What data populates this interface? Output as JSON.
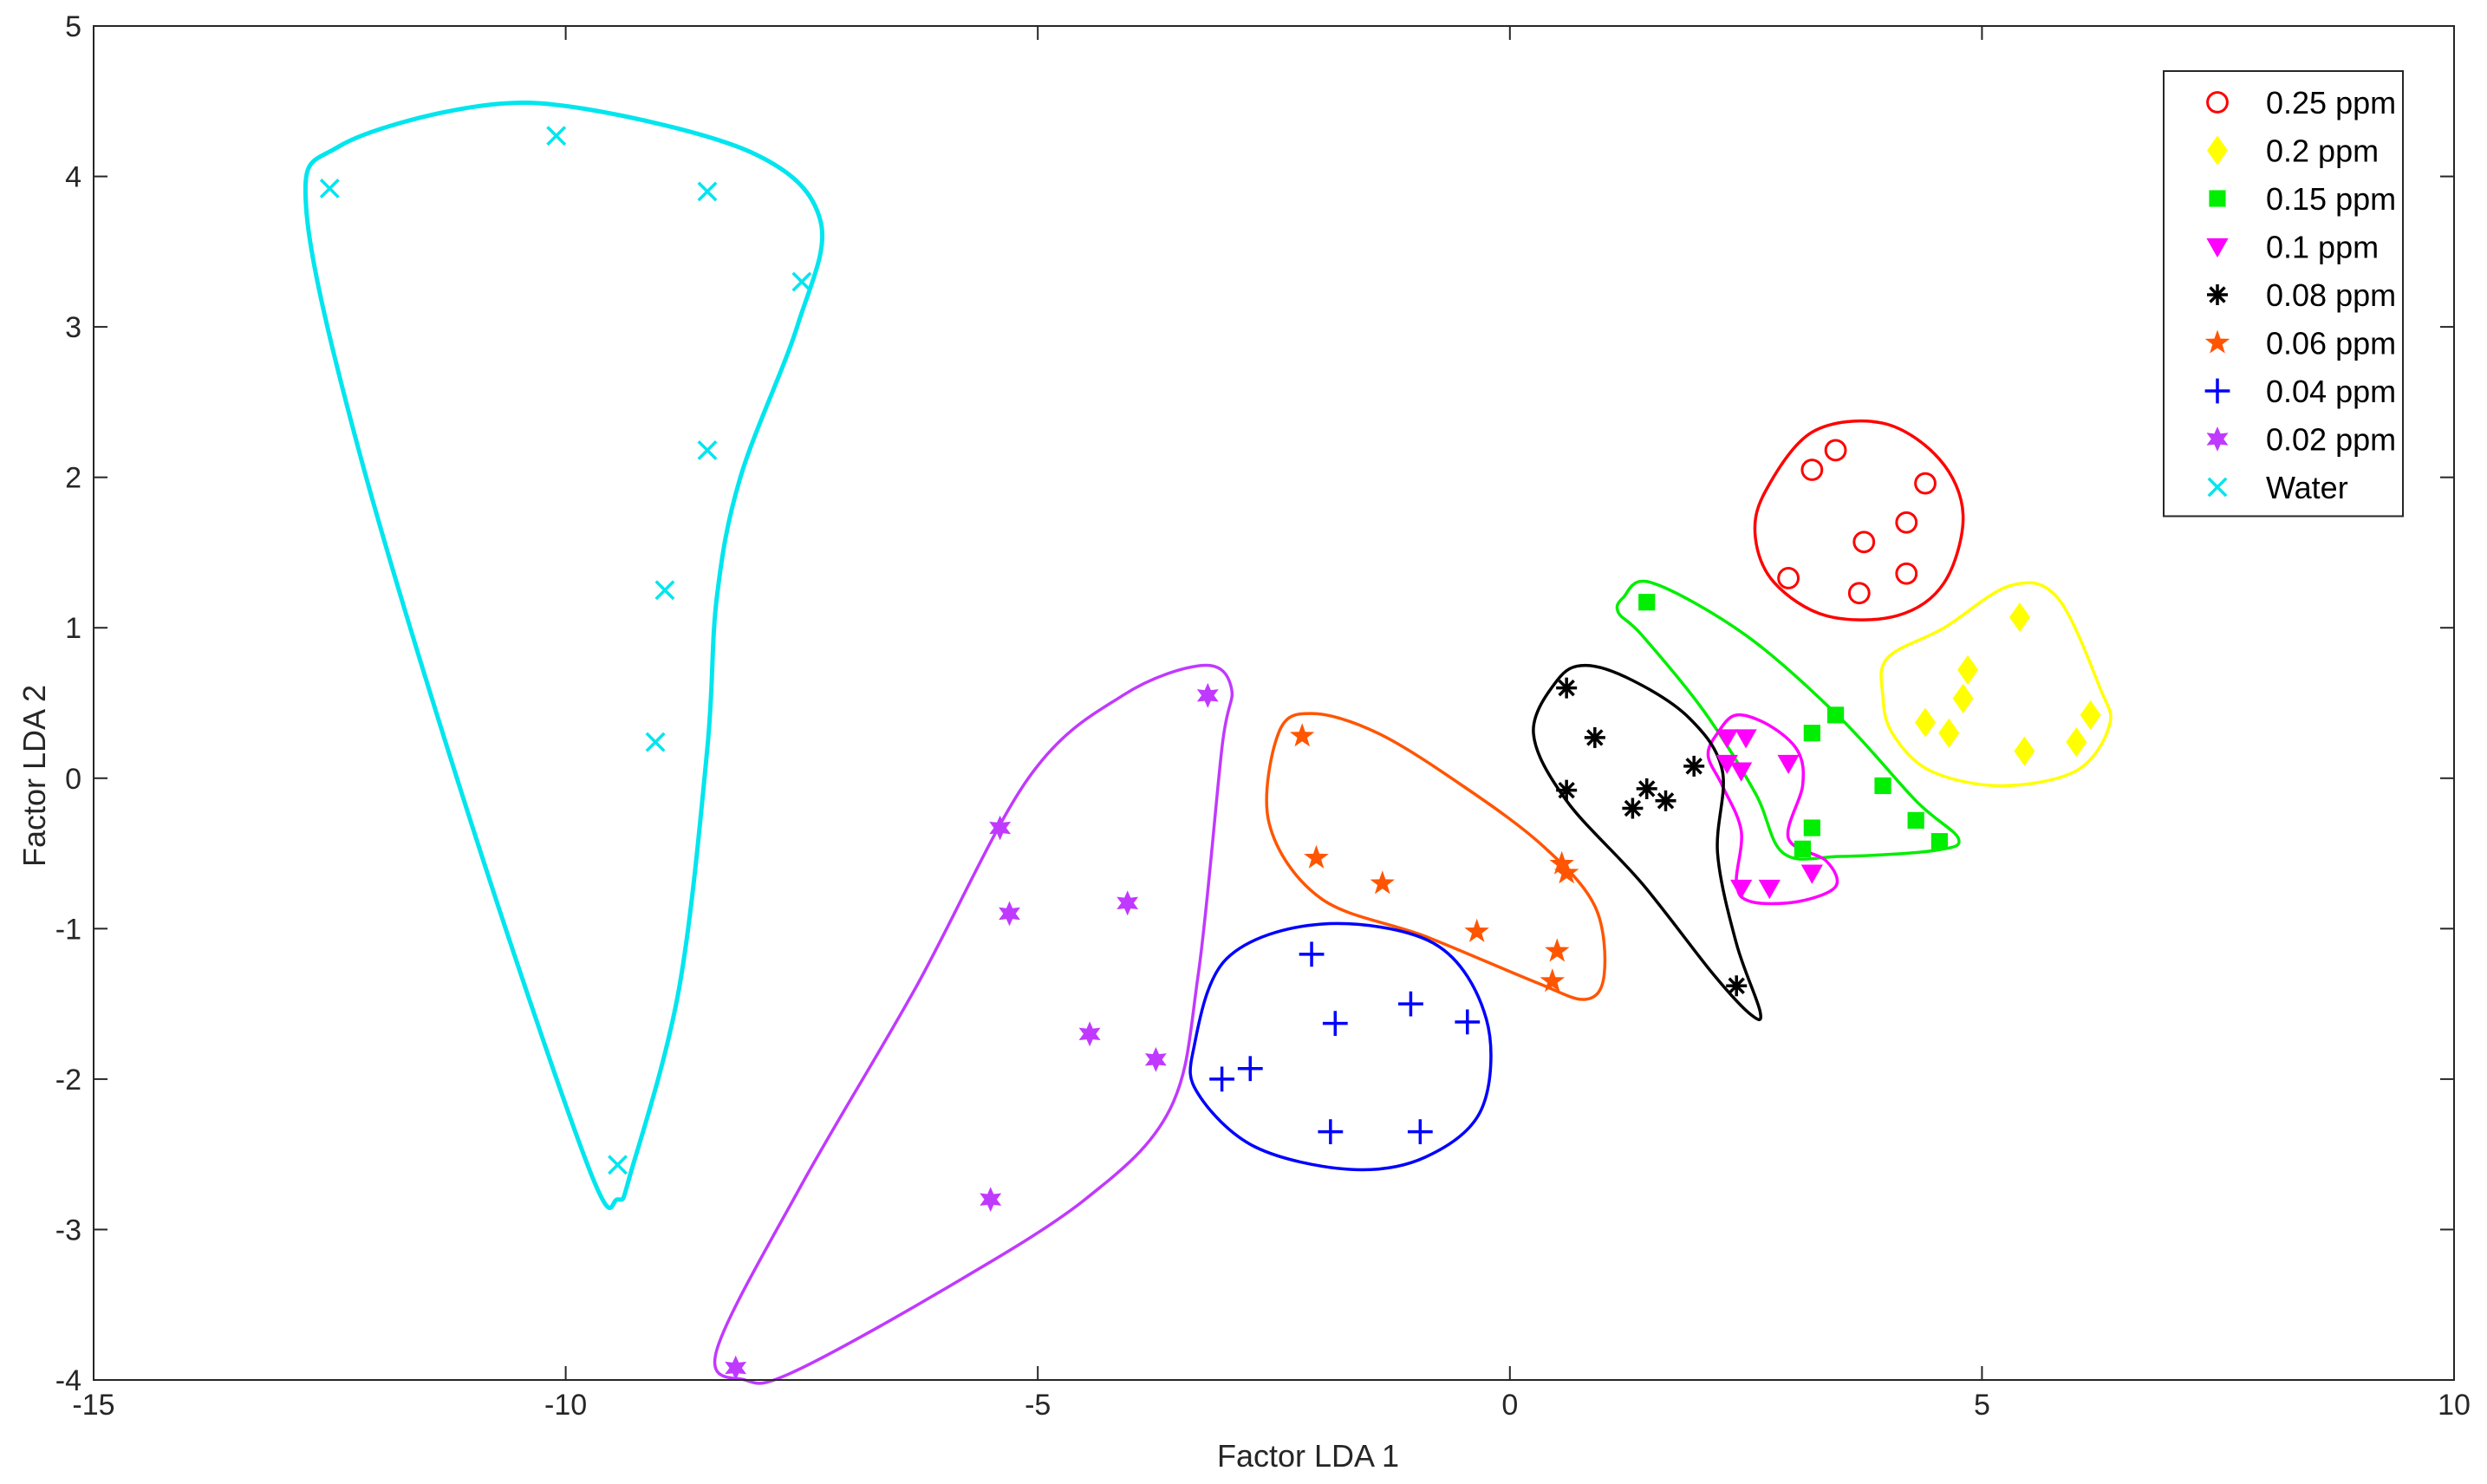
{
  "chart_data": {
    "type": "scatter",
    "xlabel": "Factor LDA 1",
    "ylabel": "Factor LDA 2",
    "xlim": [
      -15,
      10
    ],
    "ylim": [
      -4,
      5
    ],
    "xticks": [
      -15,
      -10,
      -5,
      0,
      5,
      10
    ],
    "yticks": [
      -4,
      -3,
      -2,
      -1,
      0,
      1,
      2,
      3,
      4,
      5
    ],
    "grid": false,
    "legend_position": "top-right",
    "series": [
      {
        "name": "0.25 ppm",
        "marker": "circle-open",
        "color": "#ff0000",
        "points": [
          [
            3.2,
            2.05
          ],
          [
            3.45,
            2.18
          ],
          [
            4.4,
            1.96
          ],
          [
            4.2,
            1.7
          ],
          [
            3.75,
            1.57
          ],
          [
            2.95,
            1.33
          ],
          [
            3.7,
            1.23
          ],
          [
            4.2,
            1.36
          ]
        ],
        "outline": [
          [
            2.7,
            1.9
          ],
          [
            3.2,
            2.3
          ],
          [
            3.95,
            2.36
          ],
          [
            4.55,
            2.12
          ],
          [
            4.8,
            1.75
          ],
          [
            4.6,
            1.3
          ],
          [
            4.1,
            1.08
          ],
          [
            3.35,
            1.08
          ],
          [
            2.8,
            1.3
          ],
          [
            2.6,
            1.6
          ]
        ]
      },
      {
        "name": "0.2 ppm",
        "marker": "diamond",
        "color": "#ffff00",
        "points": [
          [
            5.4,
            1.07
          ],
          [
            4.85,
            0.72
          ],
          [
            4.8,
            0.53
          ],
          [
            4.4,
            0.37
          ],
          [
            4.65,
            0.3
          ],
          [
            6.15,
            0.42
          ],
          [
            5.45,
            0.18
          ],
          [
            6.0,
            0.24
          ]
        ],
        "outline": [
          [
            4.0,
            0.8
          ],
          [
            4.6,
            1.0
          ],
          [
            5.3,
            1.28
          ],
          [
            5.8,
            1.2
          ],
          [
            6.25,
            0.6
          ],
          [
            6.35,
            0.35
          ],
          [
            6.0,
            0.05
          ],
          [
            5.2,
            -0.05
          ],
          [
            4.45,
            0.05
          ],
          [
            4.05,
            0.3
          ],
          [
            3.95,
            0.55
          ]
        ]
      },
      {
        "name": "0.15 ppm",
        "marker": "square",
        "color": "#00ee00",
        "points": [
          [
            1.45,
            1.17
          ],
          [
            3.45,
            0.42
          ],
          [
            3.2,
            0.3
          ],
          [
            3.95,
            -0.05
          ],
          [
            3.2,
            -0.33
          ],
          [
            3.1,
            -0.47
          ],
          [
            4.3,
            -0.28
          ],
          [
            4.55,
            -0.42
          ]
        ],
        "outline": [
          [
            1.2,
            1.2
          ],
          [
            1.5,
            1.3
          ],
          [
            2.5,
            0.95
          ],
          [
            3.5,
            0.4
          ],
          [
            4.3,
            -0.15
          ],
          [
            4.75,
            -0.4
          ],
          [
            4.5,
            -0.48
          ],
          [
            3.5,
            -0.52
          ],
          [
            2.9,
            -0.5
          ],
          [
            2.6,
            -0.1
          ],
          [
            2.05,
            0.45
          ],
          [
            1.4,
            0.95
          ],
          [
            1.15,
            1.1
          ]
        ]
      },
      {
        "name": "0.1 ppm",
        "marker": "triangle-down",
        "color": "#ff00ff",
        "points": [
          [
            2.3,
            0.27
          ],
          [
            2.5,
            0.27
          ],
          [
            2.3,
            0.1
          ],
          [
            2.45,
            0.05
          ],
          [
            2.95,
            0.1
          ],
          [
            2.45,
            -0.73
          ],
          [
            2.75,
            -0.73
          ],
          [
            3.2,
            -0.63
          ]
        ],
        "outline": [
          [
            2.2,
            0.3
          ],
          [
            2.4,
            0.42
          ],
          [
            2.75,
            0.35
          ],
          [
            3.05,
            0.18
          ],
          [
            3.1,
            -0.05
          ],
          [
            2.95,
            -0.4
          ],
          [
            3.35,
            -0.55
          ],
          [
            3.45,
            -0.72
          ],
          [
            3.05,
            -0.82
          ],
          [
            2.55,
            -0.82
          ],
          [
            2.4,
            -0.7
          ],
          [
            2.45,
            -0.35
          ],
          [
            2.25,
            -0.05
          ],
          [
            2.1,
            0.15
          ]
        ]
      },
      {
        "name": "0.08 ppm",
        "marker": "asterisk",
        "color": "#000000",
        "points": [
          [
            0.6,
            0.6
          ],
          [
            0.9,
            0.27
          ],
          [
            0.6,
            -0.08
          ],
          [
            1.45,
            -0.07
          ],
          [
            1.65,
            -0.15
          ],
          [
            1.95,
            0.08
          ],
          [
            1.3,
            -0.2
          ],
          [
            2.4,
            -1.38
          ]
        ],
        "outline": [
          [
            0.8,
            0.75
          ],
          [
            1.3,
            0.65
          ],
          [
            1.9,
            0.4
          ],
          [
            2.25,
            0.05
          ],
          [
            2.2,
            -0.5
          ],
          [
            2.4,
            -1.1
          ],
          [
            2.65,
            -1.55
          ],
          [
            2.55,
            -1.57
          ],
          [
            2.15,
            -1.3
          ],
          [
            1.4,
            -0.7
          ],
          [
            0.6,
            -0.15
          ],
          [
            0.25,
            0.3
          ],
          [
            0.5,
            0.65
          ]
        ]
      },
      {
        "name": "0.06 ppm",
        "marker": "star",
        "color": "#ff5500",
        "points": [
          [
            -2.2,
            0.28
          ],
          [
            -2.05,
            -0.53
          ],
          [
            -1.35,
            -0.7
          ],
          [
            -0.35,
            -1.02
          ],
          [
            0.55,
            -0.57
          ],
          [
            0.6,
            -0.63
          ],
          [
            0.5,
            -1.15
          ],
          [
            0.45,
            -1.35
          ]
        ],
        "outline": [
          [
            -2.45,
            0.3
          ],
          [
            -2.1,
            0.43
          ],
          [
            -1.4,
            0.3
          ],
          [
            -0.5,
            -0.05
          ],
          [
            0.35,
            -0.45
          ],
          [
            0.9,
            -0.85
          ],
          [
            1.0,
            -1.3
          ],
          [
            0.8,
            -1.47
          ],
          [
            0.25,
            -1.35
          ],
          [
            -0.9,
            -1.05
          ],
          [
            -2.0,
            -0.8
          ],
          [
            -2.55,
            -0.3
          ]
        ]
      },
      {
        "name": "0.04 ppm",
        "marker": "plus",
        "color": "#0000ff",
        "points": [
          [
            -2.1,
            -1.17
          ],
          [
            -1.85,
            -1.63
          ],
          [
            -1.05,
            -1.5
          ],
          [
            -0.45,
            -1.62
          ],
          [
            -2.75,
            -1.93
          ],
          [
            -3.05,
            -2.0
          ],
          [
            -1.9,
            -2.35
          ],
          [
            -0.95,
            -2.35
          ]
        ],
        "outline": [
          [
            -3.35,
            -1.8
          ],
          [
            -3.0,
            -1.2
          ],
          [
            -2.0,
            -0.97
          ],
          [
            -0.8,
            -1.1
          ],
          [
            -0.25,
            -1.6
          ],
          [
            -0.3,
            -2.2
          ],
          [
            -0.9,
            -2.52
          ],
          [
            -1.7,
            -2.6
          ],
          [
            -2.7,
            -2.45
          ],
          [
            -3.3,
            -2.1
          ]
        ]
      },
      {
        "name": "0.02 ppm",
        "marker": "hexagram",
        "color": "#c039ff",
        "points": [
          [
            -3.2,
            0.55
          ],
          [
            -5.4,
            -0.33
          ],
          [
            -5.3,
            -0.9
          ],
          [
            -4.05,
            -0.83
          ],
          [
            -4.45,
            -1.7
          ],
          [
            -3.75,
            -1.87
          ],
          [
            -5.5,
            -2.8
          ],
          [
            -8.2,
            -3.92
          ]
        ],
        "outline": [
          [
            -8.4,
            -3.8
          ],
          [
            -7.5,
            -2.7
          ],
          [
            -6.3,
            -1.4
          ],
          [
            -5.1,
            0.0
          ],
          [
            -4.1,
            0.55
          ],
          [
            -3.25,
            0.75
          ],
          [
            -2.95,
            0.6
          ],
          [
            -3.05,
            0.2
          ],
          [
            -3.3,
            -1.3
          ],
          [
            -3.6,
            -2.2
          ],
          [
            -4.5,
            -2.8
          ],
          [
            -6.0,
            -3.4
          ],
          [
            -7.6,
            -3.95
          ],
          [
            -8.1,
            -4.0
          ]
        ]
      },
      {
        "name": "Water",
        "marker": "x",
        "color": "#00e5ee",
        "points": [
          [
            -10.1,
            4.27
          ],
          [
            -8.5,
            3.9
          ],
          [
            -12.5,
            3.92
          ],
          [
            -7.5,
            3.3
          ],
          [
            -8.5,
            2.18
          ],
          [
            -8.95,
            1.25
          ],
          [
            -9.05,
            0.24
          ],
          [
            -9.45,
            -2.57
          ]
        ],
        "outline": [
          [
            -12.4,
            4.2
          ],
          [
            -11.0,
            4.46
          ],
          [
            -9.8,
            4.45
          ],
          [
            -8.0,
            4.15
          ],
          [
            -7.3,
            3.7
          ],
          [
            -7.55,
            3.0
          ],
          [
            -8.15,
            2.0
          ],
          [
            -8.4,
            1.2
          ],
          [
            -8.5,
            0.2
          ],
          [
            -8.8,
            -1.4
          ],
          [
            -9.3,
            -2.6
          ],
          [
            -9.45,
            -2.8
          ],
          [
            -9.75,
            -2.6
          ],
          [
            -11.0,
            -0.3
          ],
          [
            -12.2,
            2.2
          ],
          [
            -12.75,
            3.8
          ]
        ]
      }
    ]
  }
}
